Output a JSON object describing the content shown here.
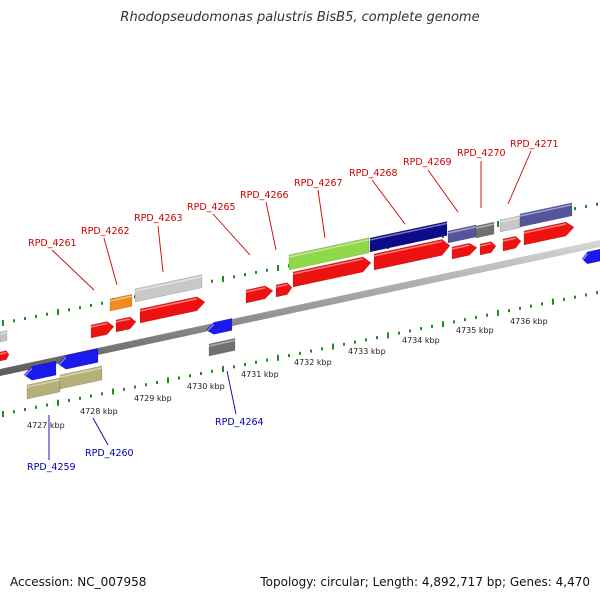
{
  "title": "Rhodopseudomonas palustris BisB5, complete genome",
  "footer": {
    "accession": "Accession: NC_007958",
    "summary": "Topology: circular; Length: 4,892,717 bp; Genes: 4,470"
  },
  "colors": {
    "forward_label": "#cc0000",
    "reverse_label": "#0000aa",
    "tick": "#1a8f1a",
    "backbone": "#888888"
  },
  "scale_labels": [
    "4727 kbp",
    "4728 kbp",
    "4729 kbp",
    "4730 kbp",
    "4731 kbp",
    "4732 kbp",
    "4733 kbp",
    "4734 kbp",
    "4735 kbp",
    "4736 kbp"
  ],
  "gene_labels": {
    "forward": [
      "RPD_4261",
      "RPD_4262",
      "RPD_4263",
      "RPD_4265",
      "RPD_4266",
      "RPD_4267",
      "RPD_4268",
      "RPD_4269",
      "RPD_4270",
      "RPD_4271"
    ],
    "reverse": [
      "RPD_4259",
      "RPD_4260",
      "RPD_4264"
    ]
  }
}
